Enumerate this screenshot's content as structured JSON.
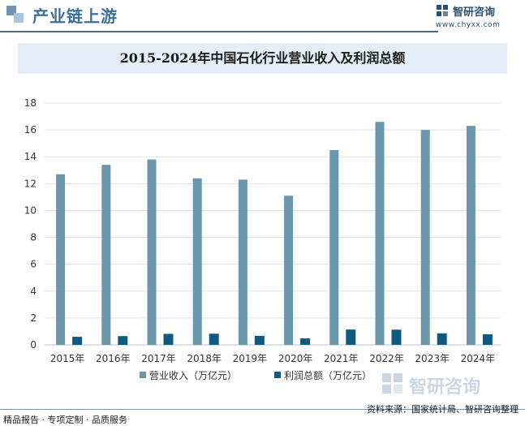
{
  "header": {
    "title": "产业链上游",
    "brand_name": "智研咨询",
    "brand_url": "www.chyxx.com"
  },
  "chart_data": {
    "type": "bar",
    "title": "2015-2024年中国石化行业营业收入及利润总额",
    "categories": [
      "2015年",
      "2016年",
      "2017年",
      "2018年",
      "2019年",
      "2020年",
      "2021年",
      "2022年",
      "2023年",
      "2024年"
    ],
    "series": [
      {
        "name": "营业收入（万亿元）",
        "values": [
          12.7,
          13.4,
          13.8,
          12.4,
          12.3,
          11.1,
          14.5,
          16.6,
          16.0,
          16.3
        ],
        "color": "#6b96ad"
      },
      {
        "name": "利润总额（万亿元）",
        "values": [
          0.6,
          0.65,
          0.82,
          0.83,
          0.67,
          0.48,
          1.14,
          1.13,
          0.86,
          0.79
        ],
        "color": "#0f5a80"
      }
    ],
    "yticks": [
      0,
      2,
      4,
      6,
      8,
      10,
      12,
      14,
      16,
      18
    ],
    "ylim": [
      0,
      18
    ],
    "grid": true,
    "legend_position": "bottom"
  },
  "footer": {
    "left": "精品报告 · 专项定制 · 品质服务",
    "right": "资料来源：国家统计局、智研咨询整理"
  },
  "watermark": {
    "text": "智研咨询"
  }
}
